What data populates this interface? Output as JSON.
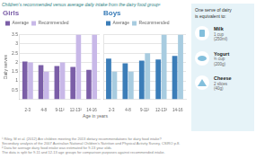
{
  "title": "Children’s recommended versus average daily intake from the dairy food group¹",
  "xlabel": "Age in years",
  "footnote": "¹ Riley, M et al. (2012) Are children meeting the 2013 dietary recommendations for dairy food intake?\nSecondary analysis of the 2007 Australian National Children’s Nutrition and Physical Activity Survey, CSIRO p.8.\n² Data for average dairy food intake was estimated for 9-13 year olds.\nThe data is split for 9-11 and 12-13 age groups for comparison purposes against recommended intake.",
  "annotations": [
    "One serve of dairy\nis equivalent to:",
    "Milk",
    "1 cup\n(250ml)",
    "Yogurt",
    "¾ cup\n(200g)",
    "Cheese",
    "2 slices\n(40g)"
  ],
  "chart_data": [
    {
      "type": "bar",
      "title": "Girls",
      "categories": [
        "2-3",
        "4-8",
        "9-11²",
        "12-13²",
        "14-16"
      ],
      "series": [
        {
          "name": "Average",
          "color": "#7b5ea7",
          "values": [
            2.05,
            1.85,
            1.8,
            1.75,
            1.6
          ]
        },
        {
          "name": "Recommended",
          "color": "#c8b8e8",
          "values": [
            2.0,
            1.5,
            2.0,
            3.5,
            3.5
          ]
        }
      ],
      "ylabel": "Daily serves",
      "ylim": [
        0,
        3.5
      ],
      "yticks": [
        0.5,
        1,
        1.5,
        2,
        2.5,
        3,
        3.5
      ],
      "grid": true,
      "legend": "upper left"
    },
    {
      "type": "bar",
      "title": "Boys",
      "categories": [
        "2-3",
        "4-8",
        "9-11²",
        "12-13²",
        "14-16"
      ],
      "series": [
        {
          "name": "Average",
          "color": "#3b7db8",
          "values": [
            2.2,
            1.95,
            2.1,
            2.15,
            2.35
          ]
        },
        {
          "name": "Recommended",
          "color": "#a8cce0",
          "values": [
            1.5,
            1.5,
            2.5,
            3.5,
            3.5
          ]
        }
      ],
      "ylim": [
        0,
        3.5
      ],
      "yticks": [
        0.5,
        1,
        1.5,
        2,
        2.5,
        3,
        3.5
      ],
      "grid": true,
      "legend": "upper left",
      "tick_labels": "x"
    }
  ]
}
